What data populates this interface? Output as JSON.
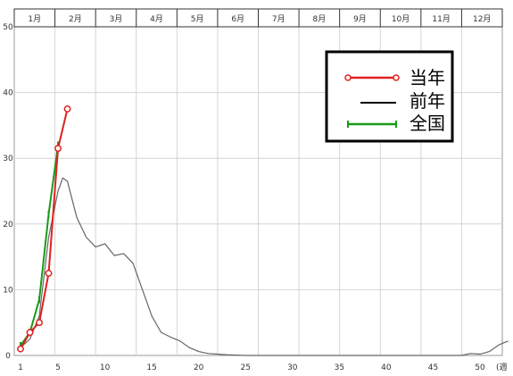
{
  "chart_data": {
    "type": "line",
    "title": "",
    "xlabel": "",
    "ylabel": "",
    "x_unit": "(週",
    "xlim": [
      1,
      53
    ],
    "ylim": [
      0,
      50
    ],
    "x_ticks": [
      1,
      5,
      10,
      15,
      20,
      25,
      30,
      35,
      40,
      45,
      50
    ],
    "y_ticks": [
      0,
      10,
      20,
      30,
      40,
      50
    ],
    "month_labels": [
      "1月",
      "2月",
      "3月",
      "4月",
      "5月",
      "6月",
      "7月",
      "8月",
      "9月",
      "10月",
      "11月",
      "12月"
    ],
    "grid": true,
    "legend_position": "top-right",
    "series": [
      {
        "name": "当年",
        "color": "#e02020",
        "marker": "circle",
        "points": [
          [
            1,
            1
          ],
          [
            2,
            3.5
          ],
          [
            3,
            5
          ],
          [
            4,
            12.5
          ],
          [
            5,
            31.5
          ],
          [
            6,
            37.5
          ]
        ]
      },
      {
        "name": "前年",
        "color": "#666666",
        "marker": "none",
        "points": [
          [
            1,
            1.2
          ],
          [
            2,
            2.5
          ],
          [
            3,
            6
          ],
          [
            4,
            18
          ],
          [
            5,
            25
          ],
          [
            5.5,
            27
          ],
          [
            6,
            26.5
          ],
          [
            7,
            21
          ],
          [
            8,
            18
          ],
          [
            9,
            16.5
          ],
          [
            10,
            17
          ],
          [
            11,
            15.2
          ],
          [
            12,
            15.5
          ],
          [
            13,
            14
          ],
          [
            14,
            10
          ],
          [
            15,
            6
          ],
          [
            16,
            3.5
          ],
          [
            17,
            2.8
          ],
          [
            18,
            2.2
          ],
          [
            19,
            1.2
          ],
          [
            20,
            0.6
          ],
          [
            21,
            0.3
          ],
          [
            22,
            0.2
          ],
          [
            23,
            0.1
          ],
          [
            25,
            0
          ],
          [
            30,
            0
          ],
          [
            35,
            0
          ],
          [
            40,
            0
          ],
          [
            45,
            0
          ],
          [
            48,
            0
          ],
          [
            49,
            0.3
          ],
          [
            50,
            0.2
          ],
          [
            51,
            0.6
          ],
          [
            52,
            1.6
          ],
          [
            53,
            2.2
          ]
        ]
      },
      {
        "name": "全国",
        "color": "#1a9a1a",
        "marker": "tick",
        "points": [
          [
            1,
            1.5
          ],
          [
            2,
            3.5
          ],
          [
            3,
            8.5
          ],
          [
            4,
            21.5
          ],
          [
            5,
            32
          ]
        ]
      }
    ]
  }
}
